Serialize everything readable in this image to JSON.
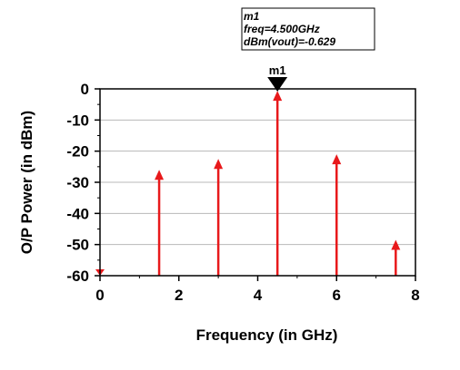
{
  "chart_data": {
    "type": "stem",
    "xlabel": "Frequency (in GHz)",
    "ylabel": "O/P Power (in dBm)",
    "xlim": [
      0,
      8
    ],
    "ylim": [
      -60,
      0
    ],
    "x_ticks": [
      "0",
      "2",
      "4",
      "6",
      "8"
    ],
    "y_ticks": [
      "0",
      "-10",
      "-20",
      "-30",
      "-40",
      "-50",
      "-60"
    ],
    "grid": "horizontal",
    "points": [
      {
        "x": 0,
        "y": -60
      },
      {
        "x": 1.5,
        "y": -26
      },
      {
        "x": 3,
        "y": -22.5
      },
      {
        "x": 4.5,
        "y": -0.629
      },
      {
        "x": 6,
        "y": -21
      },
      {
        "x": 7.5,
        "y": -48.5
      }
    ],
    "series_color": "#e8191b",
    "marker": {
      "name": "m1",
      "x": 4.5,
      "y": -0.629,
      "lines": [
        "m1",
        "freq=4.500GHz",
        "dBm(vout)=-0.629"
      ]
    }
  }
}
